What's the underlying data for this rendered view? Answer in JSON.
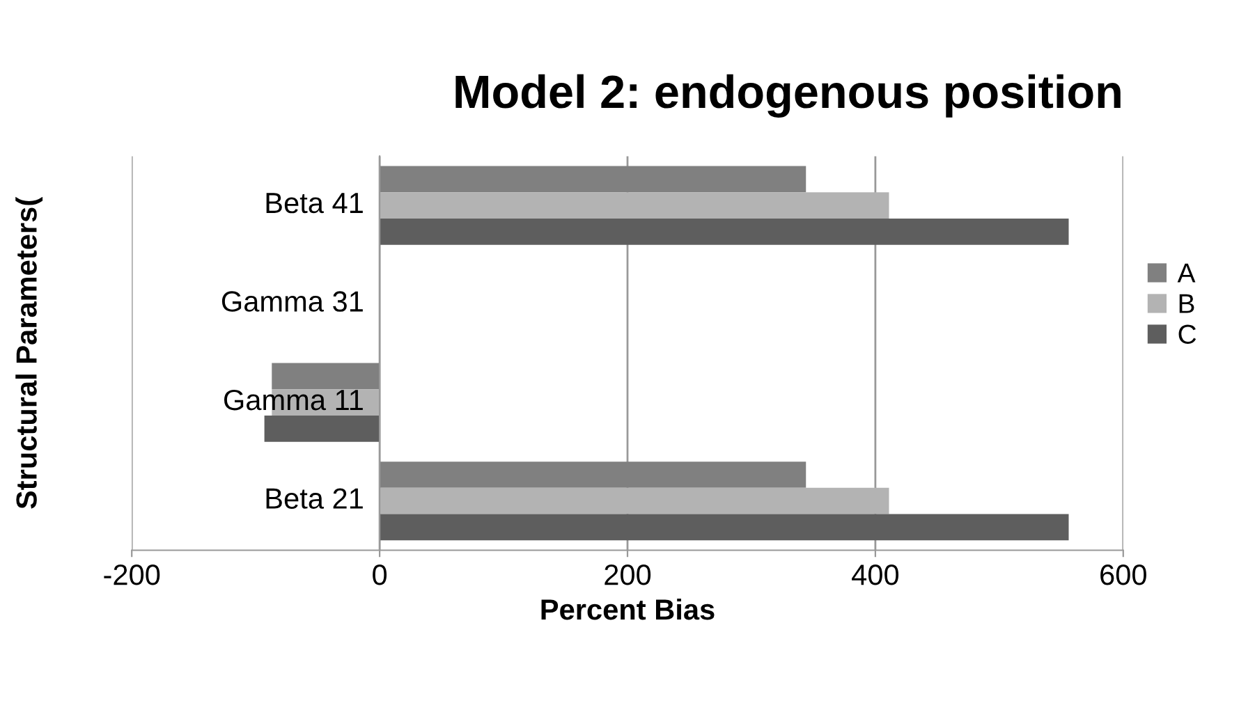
{
  "chart_data": {
    "type": "bar",
    "orientation": "horizontal",
    "title": "Model 2: endogenous position",
    "xlabel": "Percent Bias",
    "ylabel": "Structural Parameters(",
    "categories": [
      "Beta 41",
      "Gamma 31",
      "Gamma 11",
      "Beta 21"
    ],
    "series": [
      {
        "name": "A",
        "color": "#808080",
        "values": [
          344,
          0,
          -87,
          344
        ]
      },
      {
        "name": "B",
        "color": "#b3b3b3",
        "values": [
          411,
          0,
          -87,
          411
        ]
      },
      {
        "name": "C",
        "color": "#5e5e5e",
        "values": [
          556,
          0,
          -93,
          556
        ]
      }
    ],
    "xlim": [
      -200,
      600
    ],
    "xticks": [
      -200,
      0,
      200,
      400,
      600
    ],
    "grid": "x",
    "legend": "right"
  }
}
